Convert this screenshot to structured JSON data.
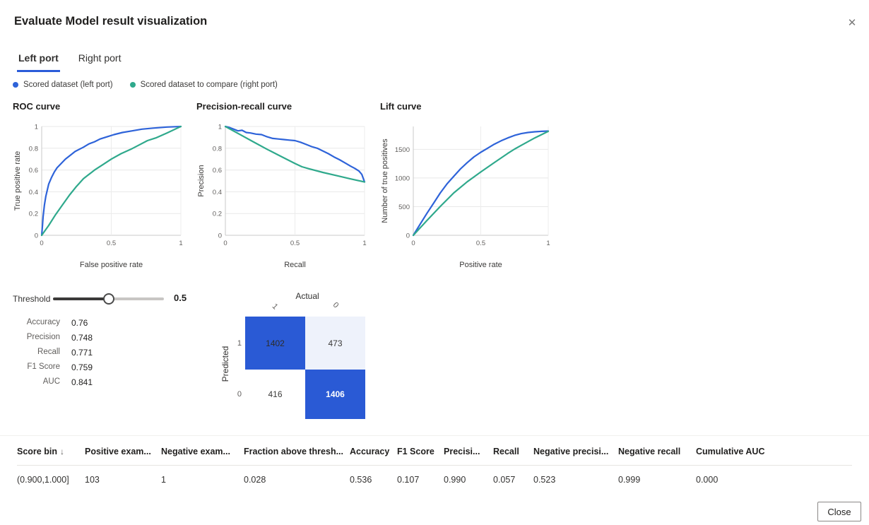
{
  "dialog": {
    "title": "Evaluate Model result visualization",
    "close_icon": "✕"
  },
  "tabs": [
    {
      "label": "Left port",
      "active": true
    },
    {
      "label": "Right port",
      "active": false
    }
  ],
  "legend": [
    {
      "label": "Scored dataset (left port)",
      "color": "#2e63d9"
    },
    {
      "label": "Scored dataset to compare (right port)",
      "color": "#2fa98c"
    }
  ],
  "chart_data": [
    {
      "type": "line",
      "title": "ROC curve",
      "xlabel": "False positive rate",
      "ylabel": "True positive rate",
      "xlim": [
        0,
        1
      ],
      "ylim": [
        0,
        1
      ],
      "xticks": [
        0,
        0.5,
        1
      ],
      "yticks": [
        0,
        0.2,
        0.4,
        0.6,
        0.8,
        1
      ],
      "grid": true,
      "legend_position": "top-outside",
      "series": [
        {
          "name": "Scored dataset (left port)",
          "color": "#2e63d9",
          "x": [
            0,
            0.005,
            0.01,
            0.02,
            0.03,
            0.05,
            0.07,
            0.09,
            0.11,
            0.14,
            0.17,
            0.2,
            0.24,
            0.27,
            0.3,
            0.34,
            0.38,
            0.42,
            0.47,
            0.52,
            0.58,
            0.65,
            0.72,
            0.8,
            0.9,
            1
          ],
          "y": [
            0,
            0.08,
            0.17,
            0.28,
            0.36,
            0.47,
            0.53,
            0.58,
            0.62,
            0.66,
            0.7,
            0.73,
            0.77,
            0.79,
            0.81,
            0.84,
            0.86,
            0.885,
            0.905,
            0.925,
            0.945,
            0.96,
            0.975,
            0.985,
            0.995,
            1
          ]
        },
        {
          "name": "Scored dataset to compare (right port)",
          "color": "#2fa98c",
          "x": [
            0,
            0.05,
            0.1,
            0.15,
            0.2,
            0.25,
            0.3,
            0.33,
            0.38,
            0.44,
            0.5,
            0.57,
            0.64,
            0.7,
            0.76,
            0.82,
            0.9,
            1
          ],
          "y": [
            0,
            0.09,
            0.19,
            0.28,
            0.37,
            0.45,
            0.52,
            0.55,
            0.6,
            0.65,
            0.7,
            0.75,
            0.79,
            0.83,
            0.87,
            0.895,
            0.94,
            1
          ]
        }
      ]
    },
    {
      "type": "line",
      "title": "Precision-recall curve",
      "xlabel": "Recall",
      "ylabel": "Precision",
      "xlim": [
        0,
        1
      ],
      "ylim": [
        0,
        1
      ],
      "xticks": [
        0,
        0.5,
        1
      ],
      "yticks": [
        0,
        0.2,
        0.4,
        0.6,
        0.8,
        1
      ],
      "grid": true,
      "series": [
        {
          "name": "Scored dataset (left port)",
          "color": "#2e63d9",
          "x": [
            0,
            0.03,
            0.06,
            0.09,
            0.12,
            0.15,
            0.18,
            0.22,
            0.26,
            0.3,
            0.34,
            0.38,
            0.42,
            0.46,
            0.5,
            0.54,
            0.58,
            0.62,
            0.66,
            0.7,
            0.74,
            0.78,
            0.82,
            0.86,
            0.9,
            0.93,
            0.96,
            0.98,
            1
          ],
          "y": [
            1,
            0.99,
            0.975,
            0.96,
            0.965,
            0.945,
            0.94,
            0.93,
            0.925,
            0.905,
            0.89,
            0.885,
            0.88,
            0.875,
            0.87,
            0.855,
            0.835,
            0.815,
            0.8,
            0.775,
            0.75,
            0.72,
            0.695,
            0.665,
            0.635,
            0.615,
            0.59,
            0.56,
            0.49
          ]
        },
        {
          "name": "Scored dataset to compare (right port)",
          "color": "#2fa98c",
          "x": [
            0,
            0.1,
            0.2,
            0.3,
            0.4,
            0.5,
            0.55,
            0.6,
            0.7,
            0.8,
            0.9,
            1
          ],
          "y": [
            1,
            0.93,
            0.86,
            0.79,
            0.725,
            0.66,
            0.63,
            0.612,
            0.578,
            0.548,
            0.518,
            0.49
          ]
        }
      ]
    },
    {
      "type": "line",
      "title": "Lift curve",
      "xlabel": "Positive rate",
      "ylabel": "Number of true positives",
      "xlim": [
        0,
        1
      ],
      "ylim": [
        0,
        1900
      ],
      "xticks": [
        0,
        0.5,
        1
      ],
      "yticks": [
        0,
        500,
        1000,
        1500
      ],
      "grid": true,
      "series": [
        {
          "name": "Scored dataset (left port)",
          "color": "#2e63d9",
          "x": [
            0,
            0.05,
            0.1,
            0.15,
            0.2,
            0.25,
            0.3,
            0.35,
            0.4,
            0.45,
            0.5,
            0.55,
            0.6,
            0.65,
            0.7,
            0.75,
            0.8,
            0.85,
            0.9,
            0.95,
            1
          ],
          "y": [
            0,
            190,
            380,
            560,
            740,
            900,
            1030,
            1160,
            1270,
            1370,
            1450,
            1520,
            1590,
            1650,
            1700,
            1745,
            1775,
            1795,
            1808,
            1815,
            1820
          ]
        },
        {
          "name": "Scored dataset to compare (right port)",
          "color": "#2fa98c",
          "x": [
            0,
            0.1,
            0.2,
            0.3,
            0.4,
            0.5,
            0.6,
            0.7,
            0.75,
            0.8,
            0.9,
            1
          ],
          "y": [
            0,
            255,
            505,
            740,
            935,
            1105,
            1270,
            1430,
            1505,
            1570,
            1700,
            1815
          ]
        }
      ]
    }
  ],
  "threshold": {
    "label": "Threshold",
    "value": "0.5",
    "percent": 50
  },
  "metrics": [
    {
      "label": "Accuracy",
      "value": "0.76"
    },
    {
      "label": "Precision",
      "value": "0.748"
    },
    {
      "label": "Recall",
      "value": "0.771"
    },
    {
      "label": "F1 Score",
      "value": "0.759"
    },
    {
      "label": "AUC",
      "value": "0.841"
    }
  ],
  "confusion_matrix": {
    "actual_label": "Actual",
    "predicted_label": "Predicted",
    "col_labels": [
      "1",
      "0"
    ],
    "row_labels": [
      "1",
      "0"
    ],
    "cells": [
      [
        {
          "value": "1402",
          "bg": "#2a5ad5",
          "text": "#2d2c2b",
          "bold": false
        },
        {
          "value": "473",
          "bg": "#eef2fb",
          "text": "#3b3a39",
          "bold": false
        }
      ],
      [
        {
          "value": "416",
          "bg": "#ffffff",
          "text": "#3b3a39",
          "bold": false
        },
        {
          "value": "1406",
          "bg": "#2a5ad5",
          "text": "#ffffff",
          "bold": true
        }
      ]
    ]
  },
  "table": {
    "sort": {
      "column": 0,
      "icon": "↓"
    },
    "columns": [
      "Score bin",
      "Positive exam...",
      "Negative exam...",
      "Fraction above thresh...",
      "Accuracy",
      "F1 Score",
      "Precisi...",
      "Recall",
      "Negative precisi...",
      "Negative recall",
      "Cumulative AUC"
    ],
    "rows": [
      [
        "(0.900,1.000]",
        "103",
        "1",
        "0.028",
        "0.536",
        "0.107",
        "0.990",
        "0.057",
        "0.523",
        "0.999",
        "0.000"
      ]
    ]
  },
  "footer": {
    "close_label": "Close"
  },
  "colors": {
    "accent_blue": "#2b5cd9",
    "series_blue": "#2e63d9",
    "series_green": "#2fa98c",
    "matrix_blue": "#2a5ad5",
    "matrix_light": "#eef2fb"
  }
}
